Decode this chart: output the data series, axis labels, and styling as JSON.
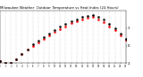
{
  "title": "Milwaukee Weather  Outdoor Temperature vs Heat Index (24 Hours)",
  "title_fontsize": 2.8,
  "bg_color": "#ffffff",
  "plot_bg": "#ffffff",
  "grid_color": "#bbbbbb",
  "temp_color": "#ff0000",
  "heat_color": "#000000",
  "legend_blue": "#0000cc",
  "legend_red": "#ff0000",
  "xlim": [
    0,
    23
  ],
  "ylim": [
    25,
    100
  ],
  "ytick_labels": [
    "25",
    "50",
    "75"
  ],
  "ytick_vals": [
    25,
    50,
    75
  ],
  "temp_data": [
    [
      0,
      28
    ],
    [
      1,
      26
    ],
    [
      2,
      25
    ],
    [
      3,
      31
    ],
    [
      4,
      38
    ],
    [
      5,
      44
    ],
    [
      6,
      50
    ],
    [
      7,
      55
    ],
    [
      8,
      60
    ],
    [
      9,
      65
    ],
    [
      10,
      70
    ],
    [
      11,
      74
    ],
    [
      12,
      78
    ],
    [
      13,
      82
    ],
    [
      14,
      85
    ],
    [
      15,
      88
    ],
    [
      16,
      90
    ],
    [
      17,
      91
    ],
    [
      18,
      88
    ],
    [
      19,
      84
    ],
    [
      20,
      78
    ],
    [
      21,
      72
    ],
    [
      22,
      65
    ],
    [
      23,
      58
    ]
  ],
  "heat_data": [
    [
      0,
      28
    ],
    [
      1,
      26
    ],
    [
      2,
      25
    ],
    [
      3,
      31
    ],
    [
      4,
      38
    ],
    [
      5,
      45
    ],
    [
      6,
      52
    ],
    [
      7,
      57
    ],
    [
      8,
      62
    ],
    [
      9,
      67
    ],
    [
      10,
      72
    ],
    [
      11,
      77
    ],
    [
      12,
      81
    ],
    [
      13,
      85
    ],
    [
      14,
      88
    ],
    [
      15,
      91
    ],
    [
      16,
      93
    ],
    [
      17,
      94
    ],
    [
      18,
      91
    ],
    [
      19,
      87
    ],
    [
      20,
      81
    ],
    [
      21,
      75
    ],
    [
      22,
      67
    ],
    [
      23,
      60
    ]
  ],
  "vline_x": [
    1,
    2,
    3,
    4,
    5,
    6,
    7,
    8,
    9,
    10,
    11,
    12,
    13,
    14,
    15,
    16,
    17,
    18,
    19,
    20,
    21,
    22
  ]
}
